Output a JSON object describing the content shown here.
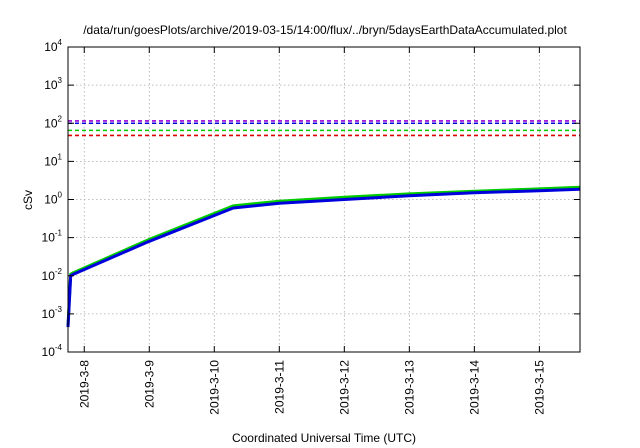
{
  "chart_data": {
    "type": "line",
    "title": "/data/run/goesPlots/archive/2019-03-15/14:00/flux/../bryn/5daysEarthDataAccumulated.plot",
    "xlabel": "Coordinated Universal Time (UTC)",
    "ylabel": "cSv",
    "y_scale": "log",
    "ylim": [
      0.0001,
      10000
    ],
    "xlim": [
      "2019-03-07 18:00",
      "2019-03-15 15:00"
    ],
    "y_ticks": [
      {
        "base": "10",
        "exp": "-4"
      },
      {
        "base": "10",
        "exp": "-3"
      },
      {
        "base": "10",
        "exp": "-2"
      },
      {
        "base": "10",
        "exp": "-1"
      },
      {
        "base": "10",
        "exp": "0"
      },
      {
        "base": "10",
        "exp": "1"
      },
      {
        "base": "10",
        "exp": "2"
      },
      {
        "base": "10",
        "exp": "3"
      },
      {
        "base": "10",
        "exp": "4"
      }
    ],
    "x_ticks": [
      "2019-3-8",
      "2019-3-9",
      "2019-3-10",
      "2019-3-11",
      "2019-3-12",
      "2019-3-13",
      "2019-3-14",
      "2019-3-15"
    ],
    "grid": true,
    "series": [
      {
        "color": "#00cc00",
        "style": "solid",
        "x": [
          "2019-03-07 18:00",
          "2019-03-07 19:00",
          "2019-03-07 20:00",
          "2019-03-09 00:00",
          "2019-03-10 07:00",
          "2019-03-11 00:00",
          "2019-03-12 00:00",
          "2019-03-13 00:00",
          "2019-03-14 00:00",
          "2019-03-15 00:00",
          "2019-03-15 15:00"
        ],
        "y": [
          0.0005,
          0.011,
          0.012,
          0.09,
          0.68,
          0.9,
          1.15,
          1.4,
          1.65,
          1.9,
          2.1
        ]
      },
      {
        "color": "#0000dd",
        "style": "solid",
        "x": [
          "2019-03-07 18:00",
          "2019-03-07 19:00",
          "2019-03-07 20:00",
          "2019-03-09 00:00",
          "2019-03-10 07:00",
          "2019-03-11 00:00",
          "2019-03-12 00:00",
          "2019-03-13 00:00",
          "2019-03-14 00:00",
          "2019-03-15 00:00",
          "2019-03-15 15:00"
        ],
        "y": [
          0.00045,
          0.01,
          0.011,
          0.08,
          0.6,
          0.8,
          1.0,
          1.25,
          1.5,
          1.7,
          1.85
        ]
      },
      {
        "color": "#9400d3",
        "style": "dashed",
        "constant": 115
      },
      {
        "color": "#0000dd",
        "style": "dashed",
        "constant": 100
      },
      {
        "color": "#00cc00",
        "style": "dashed",
        "constant": 65
      },
      {
        "color": "#dd0000",
        "style": "dashed",
        "constant": 48
      }
    ]
  }
}
